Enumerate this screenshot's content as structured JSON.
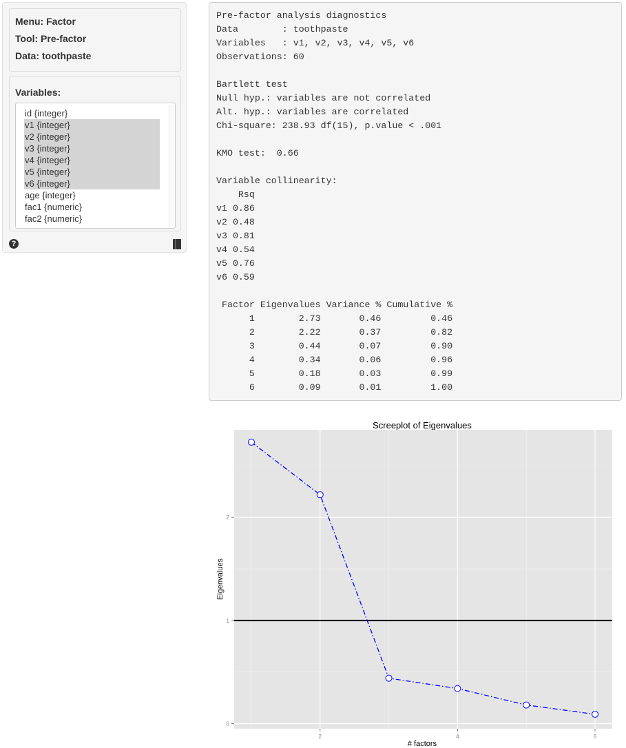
{
  "sidebar": {
    "menu": "Menu: Factor",
    "tool": "Tool: Pre-factor",
    "data": "Data: toothpaste",
    "variables_label": "Variables:",
    "variables": [
      {
        "label": "id {integer}",
        "selected": false
      },
      {
        "label": "v1 {integer}",
        "selected": true
      },
      {
        "label": "v2 {integer}",
        "selected": true
      },
      {
        "label": "v3 {integer}",
        "selected": true
      },
      {
        "label": "v4 {integer}",
        "selected": true
      },
      {
        "label": "v5 {integer}",
        "selected": true
      },
      {
        "label": "v6 {integer}",
        "selected": true
      },
      {
        "label": "age {integer}",
        "selected": false
      },
      {
        "label": "fac1 {numeric}",
        "selected": false
      },
      {
        "label": "fac2 {numeric}",
        "selected": false
      }
    ],
    "help_icon": "question-circle-icon",
    "report_icon": "book-icon"
  },
  "output": {
    "lines": [
      "Pre-factor analysis diagnostics",
      "Data        : toothpaste",
      "Variables   : v1, v2, v3, v4, v5, v6",
      "Observations: 60",
      "",
      "Bartlett test",
      "Null hyp.: variables are not correlated",
      "Alt. hyp.: variables are correlated",
      "Chi-square: 238.93 df(15), p.value < .001",
      "",
      "KMO test:  0.66",
      "",
      "Variable collinearity:",
      "    Rsq",
      "v1 0.86",
      "v2 0.48",
      "v3 0.81",
      "v4 0.54",
      "v5 0.76",
      "v6 0.59",
      "",
      " Factor Eigenvalues Variance % Cumulative %",
      "      1        2.73       0.46         0.46",
      "      2        2.22       0.37         0.82",
      "      3        0.44       0.07         0.90",
      "      4        0.34       0.06         0.96",
      "      5        0.18       0.03         0.99",
      "      6        0.09       0.01         1.00"
    ]
  },
  "chart_data": {
    "type": "line",
    "title": "Screeplot of Eigenvalues",
    "xlabel": "# factors",
    "ylabel": "Eigenvalues",
    "x": [
      1,
      2,
      3,
      4,
      5,
      6
    ],
    "values": [
      2.73,
      2.22,
      0.44,
      0.34,
      0.18,
      0.09
    ],
    "xlim": [
      0.75,
      6.25
    ],
    "ylim": [
      -0.05,
      2.85
    ],
    "xticks": [
      2,
      4,
      6
    ],
    "yticks": [
      0,
      1,
      2
    ],
    "reference_line": 1,
    "grid": true,
    "line_color": "#0000ff",
    "line_style": "dot-dash",
    "marker": "open-circle",
    "reference_line_color": "#000000",
    "panel_background": "#e5e5e5"
  }
}
